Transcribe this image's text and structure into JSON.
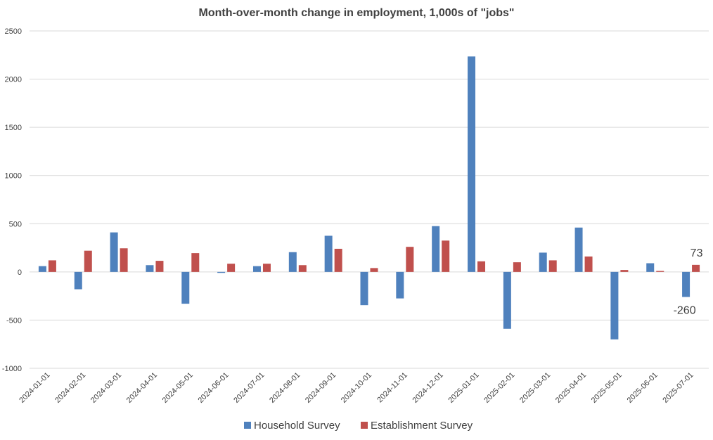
{
  "chart_data": {
    "type": "bar",
    "title": "Month-over-month change in employment, 1,000s of \"jobs\"",
    "xlabel": "",
    "ylabel": "",
    "ylim": [
      -1000,
      2500
    ],
    "yticks": [
      -1000,
      -500,
      0,
      500,
      1000,
      1500,
      2000,
      2500
    ],
    "grid": true,
    "legend_position": "bottom",
    "categories": [
      "2024-01-01",
      "2024-02-01",
      "2024-03-01",
      "2024-04-01",
      "2024-05-01",
      "2024-06-01",
      "2024-07-01",
      "2024-08-01",
      "2024-09-01",
      "2024-10-01",
      "2024-11-01",
      "2024-12-01",
      "2025-01-01",
      "2025-02-01",
      "2025-03-01",
      "2025-04-01",
      "2025-05-01",
      "2025-06-01",
      "2025-07-01"
    ],
    "series": [
      {
        "name": "Household Survey",
        "color": "#4f81bd",
        "values": [
          60,
          -180,
          410,
          70,
          -330,
          -10,
          60,
          205,
          375,
          -345,
          -275,
          475,
          2235,
          -590,
          200,
          460,
          -700,
          90,
          -260
        ]
      },
      {
        "name": "Establishment Survey",
        "color": "#c0504d",
        "values": [
          120,
          220,
          245,
          115,
          195,
          85,
          85,
          70,
          240,
          40,
          260,
          325,
          110,
          100,
          120,
          160,
          20,
          10,
          73
        ]
      }
    ],
    "annotations": [
      {
        "text": "73",
        "category": "2025-07-01",
        "series": 1
      },
      {
        "text": "-260",
        "category": "2025-07-01",
        "series": 0
      }
    ]
  }
}
